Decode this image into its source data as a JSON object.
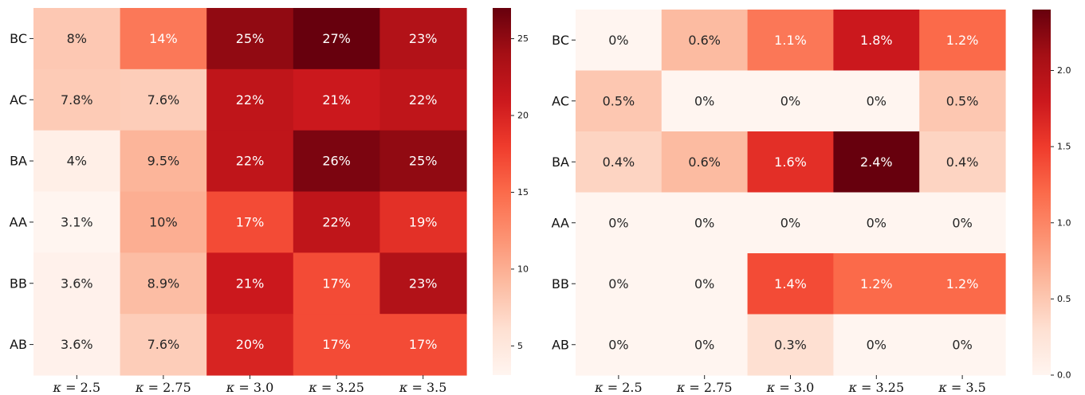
{
  "chart_data": [
    {
      "type": "heatmap",
      "title": "",
      "xlabel": "",
      "ylabel": "",
      "x_labels": [
        "κ = 2.5",
        "κ = 2.75",
        "κ = 3.0",
        "κ = 3.25",
        "κ = 3.5"
      ],
      "x_symbol": "κ",
      "x_values": [
        "2.5",
        "2.75",
        "3.0",
        "3.25",
        "3.5"
      ],
      "y_labels": [
        "BC",
        "AC",
        "BA",
        "AA",
        "BB",
        "AB"
      ],
      "values": [
        [
          8.0,
          14.0,
          25.0,
          27.0,
          23.0
        ],
        [
          7.8,
          7.6,
          22.0,
          21.0,
          22.0
        ],
        [
          4.0,
          9.5,
          22.0,
          26.0,
          25.0
        ],
        [
          3.1,
          10.0,
          17.0,
          22.0,
          19.0
        ],
        [
          3.6,
          8.9,
          21.0,
          17.0,
          23.0
        ],
        [
          3.6,
          7.6,
          20.0,
          17.0,
          17.0
        ]
      ],
      "cell_labels": [
        [
          "8%",
          "14%",
          "25%",
          "27%",
          "23%"
        ],
        [
          "7.8%",
          "7.6%",
          "22%",
          "21%",
          "22%"
        ],
        [
          "4%",
          "9.5%",
          "22%",
          "26%",
          "25%"
        ],
        [
          "3.1%",
          "10%",
          "17%",
          "22%",
          "19%"
        ],
        [
          "3.6%",
          "8.9%",
          "21%",
          "17%",
          "23%"
        ],
        [
          "3.6%",
          "7.6%",
          "20%",
          "17%",
          "17%"
        ]
      ],
      "colormap": "Reds",
      "colorbar_range": [
        3.1,
        27.0
      ],
      "colorbar_ticks": [
        "5",
        "10",
        "15",
        "20",
        "25"
      ],
      "colorbar_tick_values": [
        5,
        10,
        15,
        20,
        25
      ]
    },
    {
      "type": "heatmap",
      "title": "",
      "xlabel": "",
      "ylabel": "",
      "x_labels": [
        "κ = 2.5",
        "κ = 2.75",
        "κ = 3.0",
        "κ = 3.25",
        "κ = 3.5"
      ],
      "x_symbol": "κ",
      "x_values": [
        "2.5",
        "2.75",
        "3.0",
        "3.25",
        "3.5"
      ],
      "y_labels": [
        "BC",
        "AC",
        "BA",
        "AA",
        "BB",
        "AB"
      ],
      "values": [
        [
          0.0,
          0.6,
          1.1,
          1.8,
          1.2
        ],
        [
          0.5,
          0.0,
          0.0,
          0.0,
          0.5
        ],
        [
          0.4,
          0.6,
          1.6,
          2.4,
          0.4
        ],
        [
          0.0,
          0.0,
          0.0,
          0.0,
          0.0
        ],
        [
          0.0,
          0.0,
          1.4,
          1.2,
          1.2
        ],
        [
          0.0,
          0.0,
          0.3,
          0.0,
          0.0
        ]
      ],
      "cell_labels": [
        [
          "0%",
          "0.6%",
          "1.1%",
          "1.8%",
          "1.2%"
        ],
        [
          "0.5%",
          "0%",
          "0%",
          "0%",
          "0.5%"
        ],
        [
          "0.4%",
          "0.6%",
          "1.6%",
          "2.4%",
          "0.4%"
        ],
        [
          "0%",
          "0%",
          "0%",
          "0%",
          "0%"
        ],
        [
          "0%",
          "0%",
          "1.4%",
          "1.2%",
          "1.2%"
        ],
        [
          "0%",
          "0%",
          "0.3%",
          "0%",
          "0%"
        ]
      ],
      "colormap": "Reds",
      "colorbar_range": [
        0.0,
        2.4
      ],
      "colorbar_ticks": [
        "0.0",
        "0.5",
        "1.0",
        "1.5",
        "2.0"
      ],
      "colorbar_tick_values": [
        0.0,
        0.5,
        1.0,
        1.5,
        2.0
      ]
    }
  ],
  "colors": {
    "reds_stops": [
      "#fff5f0",
      "#fee0d2",
      "#fcbba1",
      "#fc9272",
      "#fb6a4a",
      "#ef3b2c",
      "#cb181d",
      "#a50f15",
      "#67000d"
    ],
    "text_dark": "#262626",
    "text_light": "#ffffff"
  }
}
